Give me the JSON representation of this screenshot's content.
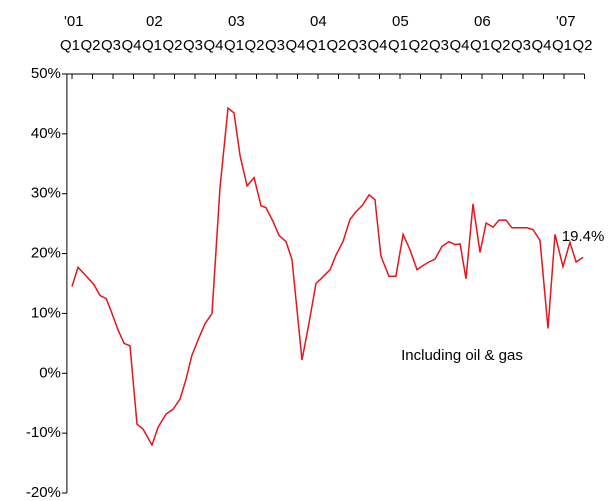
{
  "chart_data": {
    "type": "line",
    "annotations": [
      "Including oil & gas"
    ],
    "xlim": [
      -0.25,
      25
    ],
    "xticks": [
      {
        "value": 0,
        "label": "Q1"
      },
      {
        "value": 1,
        "label": "Q2"
      },
      {
        "value": 2,
        "label": "Q3"
      },
      {
        "value": 3,
        "label": "Q4"
      },
      {
        "value": 4,
        "label": "Q1"
      },
      {
        "value": 5,
        "label": "Q2"
      },
      {
        "value": 6,
        "label": "Q3"
      },
      {
        "value": 7,
        "label": "Q4"
      },
      {
        "value": 8,
        "label": "Q1"
      },
      {
        "value": 9,
        "label": "Q2"
      },
      {
        "value": 10,
        "label": "Q3"
      },
      {
        "value": 11,
        "label": "Q4"
      },
      {
        "value": 12,
        "label": "Q1"
      },
      {
        "value": 13,
        "label": "Q2"
      },
      {
        "value": 14,
        "label": "Q3"
      },
      {
        "value": 15,
        "label": "Q4"
      },
      {
        "value": 16,
        "label": "Q1"
      },
      {
        "value": 17,
        "label": "Q2"
      },
      {
        "value": 18,
        "label": "Q3"
      },
      {
        "value": 19,
        "label": "Q4"
      },
      {
        "value": 20,
        "label": "Q1"
      },
      {
        "value": 21,
        "label": "Q2"
      },
      {
        "value": 22,
        "label": "Q3"
      },
      {
        "value": 23,
        "label": "Q4"
      },
      {
        "value": 24,
        "label": "Q1"
      },
      {
        "value": 25,
        "label": "Q2"
      }
    ],
    "year_ticks": [
      {
        "value": 0,
        "label": "'01"
      },
      {
        "value": 4,
        "label": "02"
      },
      {
        "value": 8,
        "label": "03"
      },
      {
        "value": 12,
        "label": "04"
      },
      {
        "value": 16,
        "label": "05"
      },
      {
        "value": 20,
        "label": "06"
      },
      {
        "value": 24,
        "label": "'07"
      }
    ],
    "ylim": [
      -20,
      50
    ],
    "yticks": [
      {
        "value": -20,
        "label": "-20%"
      },
      {
        "value": -10,
        "label": "-10%"
      },
      {
        "value": 0,
        "label": "0%"
      },
      {
        "value": 10,
        "label": "10%"
      },
      {
        "value": 20,
        "label": "20%"
      },
      {
        "value": 30,
        "label": "30%"
      },
      {
        "value": 40,
        "label": "40%"
      },
      {
        "value": 50,
        "label": "50%"
      }
    ],
    "x": [
      0,
      0.29,
      0.68,
      1.07,
      1.37,
      1.66,
      1.95,
      2.24,
      2.54,
      2.83,
      3.17,
      3.46,
      3.9,
      4.2,
      4.59,
      4.93,
      5.27,
      5.56,
      5.85,
      6.2,
      6.49,
      6.83,
      7.22,
      7.61,
      7.9,
      8.2,
      8.54,
      8.88,
      9.22,
      9.46,
      9.8,
      10.1,
      10.44,
      10.73,
      11.22,
      11.56,
      11.9,
      12.15,
      12.59,
      12.88,
      13.22,
      13.56,
      13.85,
      14.15,
      14.49,
      14.78,
      15.07,
      15.46,
      15.8,
      16.15,
      16.49,
      16.83,
      17.12,
      17.41,
      17.71,
      18.05,
      18.39,
      18.68,
      18.93,
      19.22,
      19.56,
      19.9,
      20.2,
      20.54,
      20.83,
      21.17,
      21.46,
      21.8,
      22.2,
      22.49,
      22.83,
      23.22,
      23.56,
      23.95,
      24.29,
      24.59,
      24.93
    ],
    "series": [
      {
        "color": "#e8141b",
        "values": [
          14.5,
          17.7,
          16.3,
          14.8,
          13,
          12.5,
          10,
          7.3,
          5,
          4.6,
          -8.5,
          -9.3,
          -12,
          -9,
          -6.8,
          -6,
          -4.3,
          -1,
          3,
          6,
          8.3,
          10,
          31,
          44.3,
          43.5,
          36.3,
          31.3,
          32.7,
          28,
          27.7,
          25.4,
          23,
          22,
          19,
          2.2,
          8.4,
          15,
          15.8,
          17.3,
          19.8,
          22,
          25.7,
          27,
          28,
          29.8,
          29,
          19.6,
          16.2,
          16.2,
          23.2,
          20.6,
          17.3,
          18,
          18.6,
          19.1,
          21.2,
          22,
          21.5,
          21.6,
          15.8,
          28.3,
          20.2,
          25.1,
          24.4,
          25.6,
          25.6,
          24.3,
          24.3,
          24.3,
          24,
          22.2,
          7.5,
          23.2,
          17.8,
          21.9,
          18.6,
          19.4
        ],
        "value_labels": [
          null,
          null,
          null,
          null,
          null,
          null,
          null,
          null,
          null,
          null,
          null,
          null,
          null,
          null,
          null,
          null,
          null,
          null,
          null,
          null,
          null,
          null,
          null,
          null,
          null,
          null,
          null,
          null,
          null,
          null,
          null,
          null,
          null,
          null,
          null,
          null,
          null,
          null,
          null,
          null,
          null,
          null,
          null,
          null,
          null,
          null,
          null,
          null,
          null,
          null,
          null,
          null,
          null,
          null,
          null,
          null,
          null,
          null,
          null,
          null,
          null,
          null,
          null,
          null,
          null,
          null,
          null,
          null,
          null,
          null,
          null,
          null,
          null,
          null,
          null,
          null,
          "19.4%"
        ]
      }
    ]
  }
}
